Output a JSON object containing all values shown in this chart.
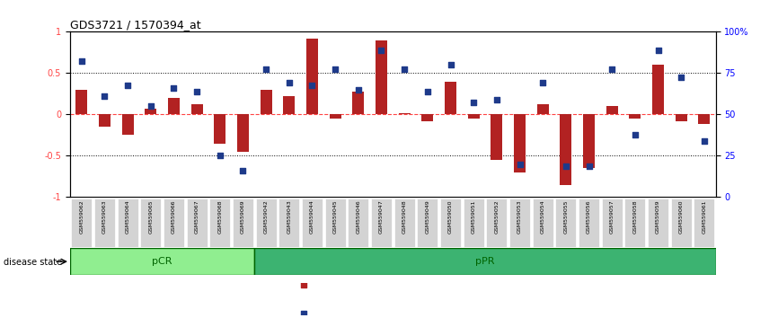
{
  "title": "GDS3721 / 1570394_at",
  "samples": [
    "GSM559062",
    "GSM559063",
    "GSM559064",
    "GSM559065",
    "GSM559066",
    "GSM559067",
    "GSM559068",
    "GSM559069",
    "GSM559042",
    "GSM559043",
    "GSM559044",
    "GSM559045",
    "GSM559046",
    "GSM559047",
    "GSM559048",
    "GSM559049",
    "GSM559050",
    "GSM559051",
    "GSM559052",
    "GSM559053",
    "GSM559054",
    "GSM559055",
    "GSM559056",
    "GSM559057",
    "GSM559058",
    "GSM559059",
    "GSM559060",
    "GSM559061"
  ],
  "red_bars": [
    0.3,
    -0.15,
    -0.25,
    0.07,
    0.2,
    0.12,
    -0.35,
    -0.45,
    0.3,
    0.22,
    0.92,
    -0.05,
    0.28,
    0.9,
    0.02,
    -0.08,
    0.4,
    -0.05,
    -0.55,
    -0.7,
    0.12,
    -0.85,
    -0.65,
    0.1,
    -0.05,
    0.6,
    -0.08,
    -0.12
  ],
  "blue_dots": [
    0.65,
    0.22,
    0.35,
    0.1,
    0.32,
    0.28,
    -0.5,
    -0.68,
    0.55,
    0.38,
    0.35,
    0.55,
    0.3,
    0.78,
    0.55,
    0.28,
    0.6,
    0.15,
    0.18,
    -0.6,
    0.38,
    -0.62,
    -0.62,
    0.55,
    -0.25,
    0.78,
    0.45,
    -0.32
  ],
  "pCR_count": 8,
  "pPR_count": 20,
  "ylim": [
    -1,
    1
  ],
  "yticks_left": [
    -1,
    -0.5,
    0,
    0.5,
    1
  ],
  "yticks_right": [
    0,
    25,
    50,
    75,
    100
  ],
  "right_labels": [
    "0",
    "25",
    "50",
    "75",
    "100%"
  ],
  "bar_color": "#B22222",
  "dot_color": "#1E3A8A",
  "pCR_color": "#90EE90",
  "pPR_color": "#3CB371",
  "label_bg_color": "#D3D3D3",
  "zero_line_color": "#FF4444",
  "dot_line_color": "#000000"
}
